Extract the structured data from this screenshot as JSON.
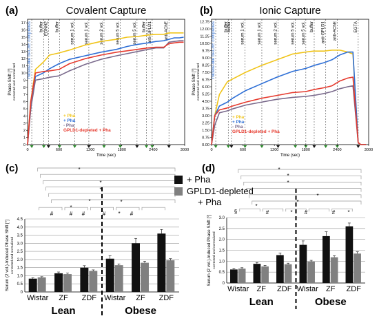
{
  "chart_data": [
    {
      "panel": "(a)",
      "type": "line",
      "title": "Covalent Capture",
      "xlabel": "Time (sec)",
      "ylabel": "Phase Shift [°]",
      "ylabel_sub": "corrected and normalized",
      "xlim": [
        0,
        3000
      ],
      "ylim": [
        0,
        17.5
      ],
      "xticks": [
        0,
        600,
        1200,
        1800,
        2400,
        3000
      ],
      "yticks": [
        0,
        1,
        2,
        3,
        4,
        5,
        6,
        7,
        8,
        9,
        10,
        11,
        12,
        13,
        14,
        15,
        16,
        17
      ],
      "stage_labels": [
        "micelle-like bAChE complexes",
        "buffer",
        "EDNH2",
        "buffer",
        "serum 1 vol.",
        "serum 1 vol.",
        "serum 2 vol.",
        "serum 5 vol.",
        "serum 5 vol.",
        "buffer",
        "anti-GPLD1",
        "anti-AChE"
      ],
      "stage_times": [
        80,
        310,
        400,
        610,
        900,
        1170,
        1460,
        1770,
        2090,
        2270,
        2380,
        2700
      ],
      "legend": [
        "+ Pha",
        "+ Pha",
        "- Pha",
        "GPLD1-depleted + Pha"
      ],
      "series": [
        {
          "name": "+ Pha",
          "color": "#f0c419",
          "x": [
            0,
            60,
            150,
            300,
            420,
            600,
            800,
            1100,
            1400,
            1700,
            1900,
            2100,
            2300,
            2450,
            2600,
            2700,
            2800,
            2900,
            2980
          ],
          "y": [
            0,
            6,
            10.5,
            11.5,
            12.5,
            12.8,
            13.2,
            13.9,
            14.4,
            14.7,
            15.0,
            15.1,
            15.3,
            15.4,
            15.4,
            15.6,
            15.6,
            15.6,
            15.6
          ]
        },
        {
          "name": "+ Pha",
          "color": "#2e6fd6",
          "x": [
            0,
            60,
            150,
            300,
            420,
            600,
            800,
            1100,
            1400,
            1700,
            1900,
            2100,
            2300,
            2450,
            2600,
            2700,
            2800,
            2900,
            2980
          ],
          "y": [
            0,
            5,
            9.5,
            10.0,
            10.6,
            11.3,
            11.9,
            12.4,
            12.9,
            13.3,
            13.7,
            14.0,
            14.2,
            14.4,
            14.5,
            14.7,
            14.9,
            14.9,
            15.0
          ]
        },
        {
          "name": "- Pha",
          "color": "#7a6a8c",
          "x": [
            0,
            60,
            150,
            300,
            420,
            600,
            800,
            1100,
            1400,
            1700,
            1900,
            2100,
            2300,
            2450,
            2600,
            2700,
            2800,
            2900,
            2980
          ],
          "y": [
            0,
            5,
            9.0,
            9.2,
            9.4,
            9.6,
            10.3,
            11.2,
            11.9,
            12.4,
            12.7,
            13.0,
            13.3,
            13.5,
            13.5,
            14.3,
            14.4,
            14.5,
            14.5
          ]
        },
        {
          "name": "GPLD1-depleted + Pha",
          "color": "#e63a2e",
          "x": [
            0,
            60,
            150,
            300,
            420,
            600,
            800,
            1100,
            1400,
            1700,
            1900,
            2100,
            2300,
            2450,
            2600,
            2700,
            2800,
            2900,
            2980
          ],
          "y": [
            0,
            6,
            10.0,
            10.2,
            10.3,
            10.5,
            11.3,
            12.0,
            12.5,
            12.9,
            13.1,
            13.3,
            13.5,
            13.6,
            13.6,
            14.1,
            14.2,
            14.3,
            14.3
          ]
        }
      ]
    },
    {
      "panel": "(b)",
      "type": "line",
      "title": "Ionic Capture",
      "xlabel": "Time (sec)",
      "ylabel": "Phase Shift [°]",
      "ylabel_sub": "corrected and normalized",
      "xlim": [
        0,
        3000
      ],
      "ylim": [
        0,
        13
      ],
      "xticks": [
        0,
        600,
        1200,
        1800,
        2400,
        3000
      ],
      "yticks": [
        0.0,
        0.75,
        1.5,
        2.25,
        3.0,
        3.75,
        4.5,
        5.25,
        6.0,
        6.75,
        7.5,
        8.25,
        9.0,
        9.75,
        10.5,
        11.25,
        12.0,
        12.75
      ],
      "stage_labels": [
        "micelle-like bAChE complexes",
        "buffer",
        "buffer",
        "serum 1 vol.",
        "serum 1 vol.",
        "serum 2 vol.",
        "serum 5 vol.",
        "serum 5 vol.",
        "buffer",
        "anti-GPLD1",
        "anti-AChE",
        "EGTA"
      ],
      "stage_times": [
        80,
        320,
        380,
        640,
        960,
        1270,
        1600,
        1800,
        1960,
        2180,
        2400,
        2800
      ],
      "legend": [
        "+ Pha",
        "+ Pha",
        "- Pha",
        "GPLD1-depleted + Pha"
      ],
      "series": [
        {
          "name": "+ Pha",
          "color": "#f0c419",
          "x": [
            0,
            60,
            150,
            300,
            400,
            650,
            950,
            1250,
            1550,
            1800,
            1950,
            2150,
            2300,
            2450,
            2600,
            2700,
            2800,
            2850,
            2950
          ],
          "y": [
            0,
            3,
            5.2,
            6.5,
            6.8,
            7.5,
            8.2,
            8.8,
            9.4,
            9.6,
            9.7,
            9.7,
            9.8,
            9.8,
            9.6,
            9.4,
            0.2,
            0,
            0
          ]
        },
        {
          "name": "+ Pha",
          "color": "#2e6fd6",
          "x": [
            0,
            60,
            150,
            300,
            400,
            650,
            950,
            1250,
            1550,
            1800,
            1950,
            2150,
            2300,
            2450,
            2600,
            2700,
            2800,
            2850,
            2950
          ],
          "y": [
            0,
            3,
            4.0,
            4.4,
            4.8,
            5.6,
            6.3,
            7.0,
            7.6,
            7.9,
            8.2,
            8.5,
            8.8,
            9.3,
            9.6,
            9.6,
            0.2,
            0,
            0
          ]
        },
        {
          "name": "- Pha",
          "color": "#7a6a8c",
          "x": [
            0,
            60,
            150,
            300,
            400,
            650,
            950,
            1250,
            1550,
            1800,
            1950,
            2150,
            2300,
            2450,
            2600,
            2700,
            2800,
            2850,
            2950
          ],
          "y": [
            0,
            2,
            3.3,
            3.5,
            3.7,
            4.1,
            4.4,
            4.7,
            4.9,
            5.0,
            5.1,
            5.3,
            5.5,
            5.8,
            6.0,
            6.1,
            0.2,
            0,
            0
          ]
        },
        {
          "name": "GPLD1-depleted + Pha",
          "color": "#e63a2e",
          "x": [
            0,
            60,
            150,
            300,
            400,
            650,
            950,
            1250,
            1550,
            1800,
            1950,
            2150,
            2300,
            2450,
            2600,
            2700,
            2800,
            2850,
            2950
          ],
          "y": [
            0,
            3,
            3.6,
            3.8,
            4.0,
            4.4,
            4.8,
            5.1,
            5.4,
            5.5,
            5.7,
            5.9,
            6.1,
            6.6,
            6.9,
            7.0,
            0.2,
            0,
            0
          ]
        }
      ]
    },
    {
      "panel": "(c)",
      "type": "bar",
      "ylabel": "Serum (2 vol.)-Induced Phase Shift [°]",
      "ylabel_sub": "corrected and normalized",
      "ylim": [
        0,
        4.5
      ],
      "yticks": [
        0,
        0.5,
        1.0,
        1.5,
        2.0,
        2.5,
        3.0,
        3.5,
        4.0,
        4.5
      ],
      "ytick_labels": [
        "0",
        "0.5",
        "1.0",
        "1.5",
        "2.0",
        "2.5",
        "3.0",
        "3.5",
        "4.0",
        "4.5"
      ],
      "categories": [
        "Wistar",
        "ZF",
        "ZDF",
        "Wistar",
        "ZF",
        "ZDF"
      ],
      "groups": [
        "Lean",
        "Obese"
      ],
      "series": [
        {
          "name": "+ Pha",
          "color": "#111111",
          "values": [
            0.82,
            1.15,
            1.5,
            2.05,
            3.0,
            3.6
          ],
          "errors": [
            0.05,
            0.08,
            0.12,
            0.18,
            0.3,
            0.25
          ]
        },
        {
          "name": "GPLD1-depleted + Pha",
          "color": "#808080",
          "values": [
            0.9,
            1.1,
            1.3,
            1.65,
            1.8,
            1.95
          ],
          "errors": [
            0.04,
            0.06,
            0.06,
            0.08,
            0.09,
            0.1
          ]
        }
      ],
      "sig_markers": [
        "#",
        "#",
        "#",
        "#",
        "*",
        "#",
        "*",
        "*",
        "*",
        "*",
        "*",
        "*"
      ]
    },
    {
      "panel": "(d)",
      "type": "bar",
      "ylabel": "Serum (2 vol.)-Induced Phase Shift [°]",
      "ylabel_sub": "corrected and normalized",
      "ylim": [
        0,
        3.0
      ],
      "yticks": [
        0,
        0.5,
        1.0,
        1.5,
        2.0,
        2.5,
        3.0
      ],
      "ytick_labels": [
        "0",
        "0.5",
        "1.0",
        "1.5",
        "2.0",
        "2.5",
        "3.0"
      ],
      "categories": [
        "Wistar",
        "ZF",
        "ZDF",
        "Wistar",
        "ZF",
        "ZDF"
      ],
      "groups": [
        "Lean",
        "Obese"
      ],
      "series": [
        {
          "name": "+ Pha",
          "color": "#111111",
          "values": [
            0.62,
            0.88,
            1.28,
            1.75,
            2.15,
            2.6
          ],
          "errors": [
            0.05,
            0.06,
            0.1,
            0.18,
            0.2,
            0.15
          ]
        },
        {
          "name": "GPLD1-depleted + Pha",
          "color": "#808080",
          "values": [
            0.66,
            0.76,
            0.86,
            0.98,
            1.18,
            1.35
          ],
          "errors": [
            0.04,
            0.05,
            0.05,
            0.06,
            0.07,
            0.08
          ]
        }
      ],
      "sig_markers": [
        "§",
        "#",
        "*",
        "#",
        "#",
        "*",
        "*",
        "*",
        "*",
        "*",
        "*",
        "*"
      ]
    }
  ],
  "legend_cd": {
    "items": [
      "+ Pha",
      "GPLD1-depleted",
      "+ Pha"
    ]
  }
}
